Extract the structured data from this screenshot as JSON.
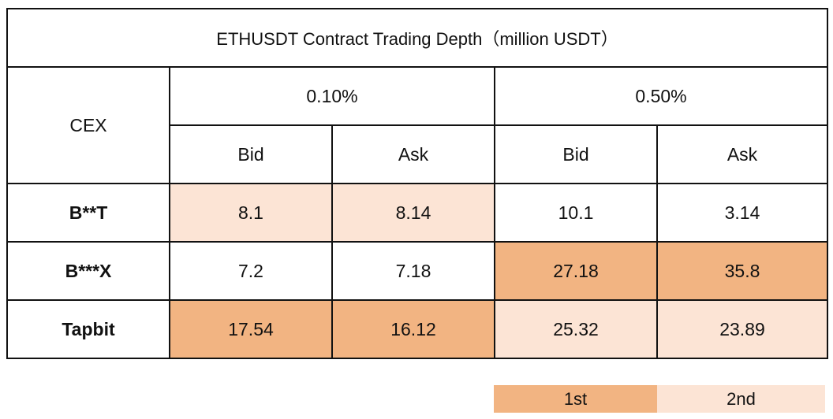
{
  "chart_data": {
    "type": "table",
    "title": "ETHUSDT Contract Trading Depth（million USDT）",
    "row_header_label": "CEX",
    "depth_levels": [
      "0.10%",
      "0.50%"
    ],
    "sides": [
      "Bid",
      "Ask"
    ],
    "columns": [
      "0.10% Bid",
      "0.10% Ask",
      "0.50% Bid",
      "0.50% Ask"
    ],
    "rows": [
      {
        "exchange": "B**T",
        "values": [
          "8.1",
          "8.14",
          "10.1",
          "3.14"
        ],
        "ranks": [
          2,
          2,
          0,
          0
        ]
      },
      {
        "exchange": "B***X",
        "values": [
          "7.2",
          "7.18",
          "27.18",
          "35.8"
        ],
        "ranks": [
          0,
          0,
          1,
          1
        ]
      },
      {
        "exchange": "Tapbit",
        "values": [
          "17.54",
          "16.12",
          "25.32",
          "23.89"
        ],
        "ranks": [
          1,
          1,
          2,
          2
        ]
      }
    ],
    "legend": [
      {
        "label": "1st",
        "color": "#f2b482"
      },
      {
        "label": "2nd",
        "color": "#fce4d5"
      }
    ]
  }
}
